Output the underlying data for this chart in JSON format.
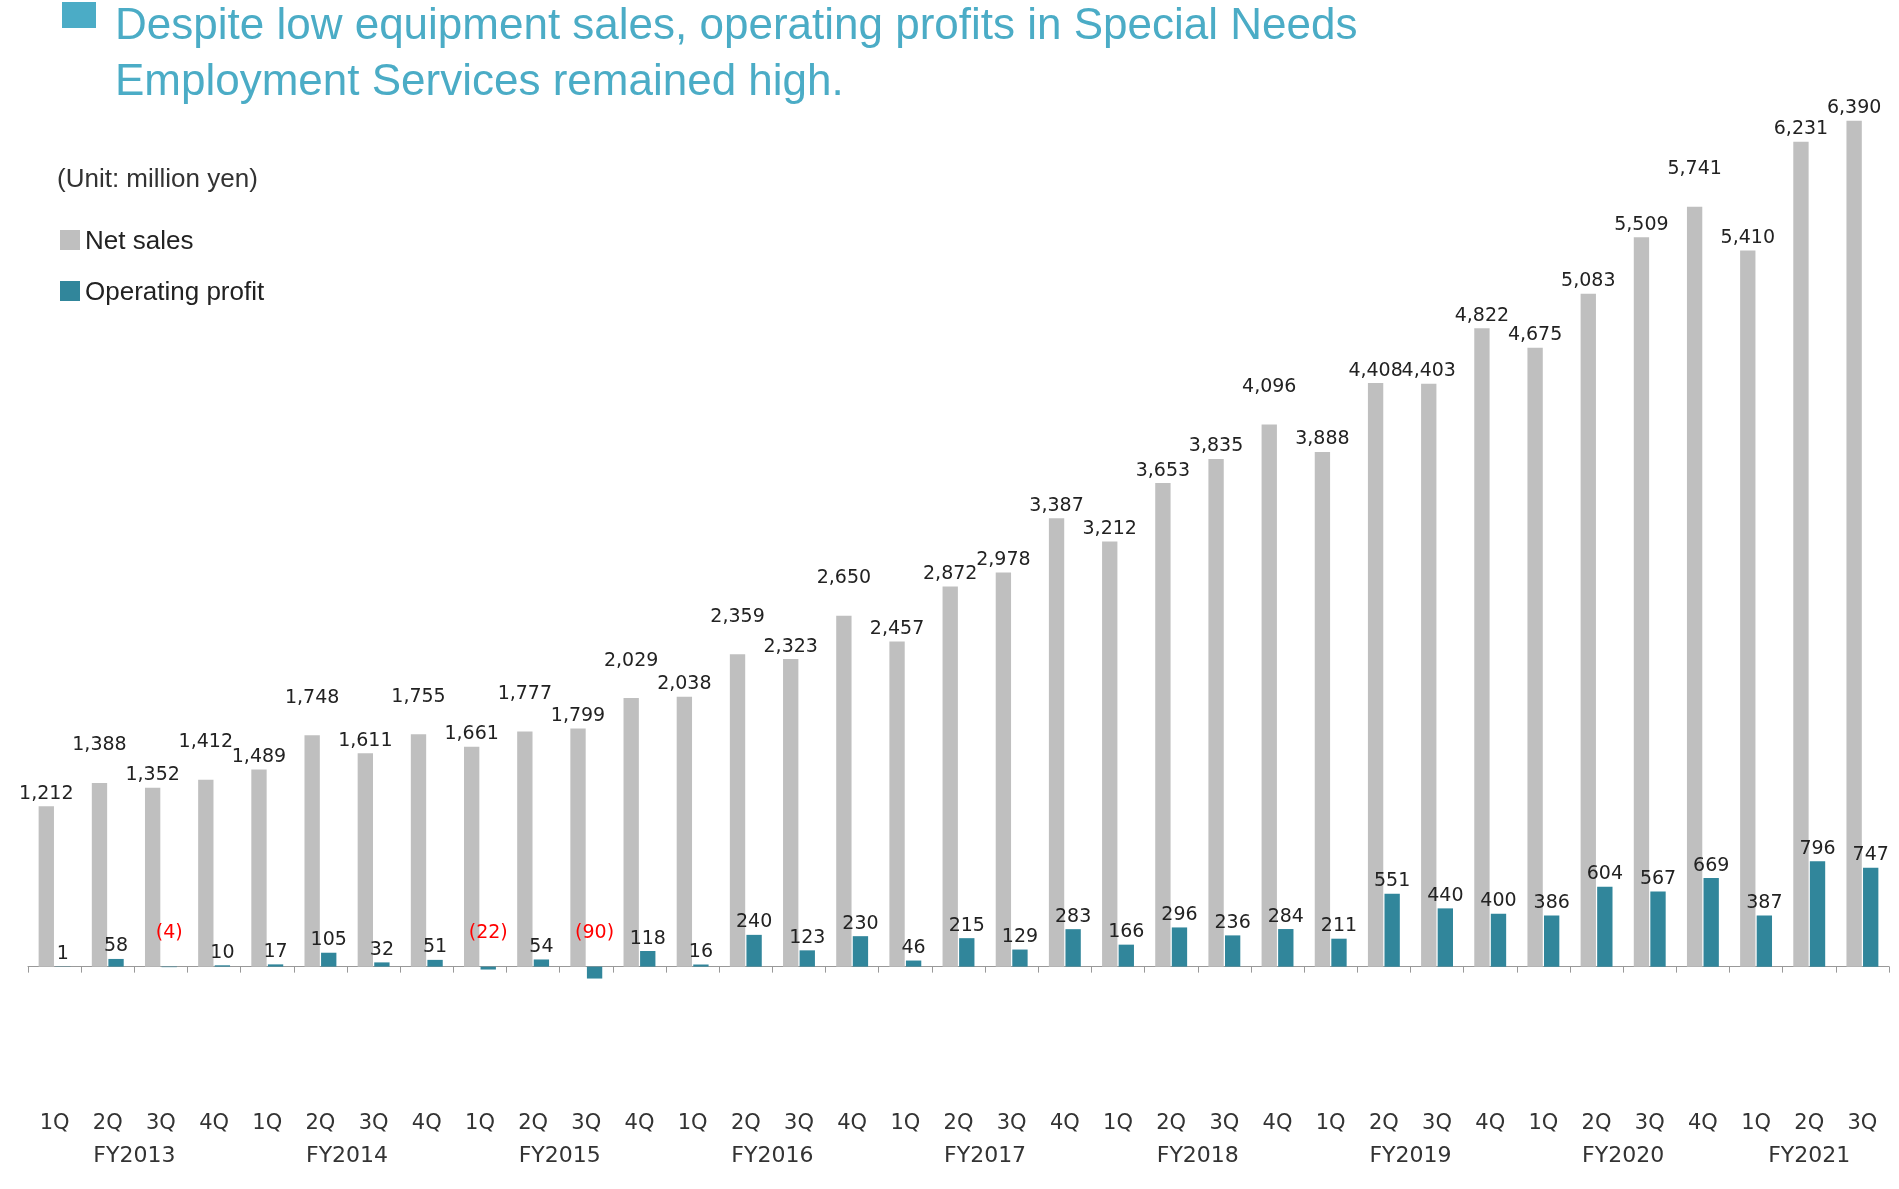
{
  "chart_data": {
    "type": "bar",
    "title": "Despite low equipment sales, operating profits in Special Needs Employment Services remained high.",
    "subtitle": "(Unit: million yen)",
    "annotations": [
      "FY2013",
      "FY2014",
      "FY2015",
      "FY2016",
      "FY2017",
      "FY2018",
      "FY2019",
      "FY2020",
      "FY2021"
    ],
    "categories": [
      "1Q",
      "2Q",
      "3Q",
      "4Q",
      "1Q",
      "2Q",
      "3Q",
      "4Q",
      "1Q",
      "2Q",
      "3Q",
      "4Q",
      "1Q",
      "2Q",
      "3Q",
      "4Q",
      "1Q",
      "2Q",
      "3Q",
      "4Q",
      "1Q",
      "2Q",
      "3Q",
      "4Q",
      "1Q",
      "2Q",
      "3Q",
      "4Q",
      "1Q",
      "2Q",
      "3Q",
      "4Q",
      "1Q",
      "2Q",
      "3Q"
    ],
    "series": [
      {
        "name": "Net sales",
        "color": "#bfbfbf",
        "values": [
          1212,
          1388,
          1352,
          1412,
          1489,
          1748,
          1611,
          1755,
          1661,
          1777,
          1799,
          2029,
          2038,
          2359,
          2323,
          2650,
          2457,
          2872,
          2978,
          3387,
          3212,
          3653,
          3835,
          4096,
          3888,
          4408,
          4403,
          4822,
          4675,
          5083,
          5509,
          5741,
          5410,
          6231,
          6390
        ],
        "value_labels": [
          "1,212",
          "1,388",
          "1,352",
          "1,412",
          "1,489",
          "1,748",
          "1,611",
          "1,755",
          "1,661",
          "1,777",
          "1,799",
          "2,029",
          "2,038",
          "2,359",
          "2,323",
          "2,650",
          "2,457",
          "2,872",
          "2,978",
          "3,387",
          "3,212",
          "3,653",
          "3,835",
          "4,096",
          "3,888",
          "4,408",
          "4,403",
          "4,822",
          "4,675",
          "5,083",
          "5,509",
          "5,741",
          "5,410",
          "6,231",
          "6,390"
        ]
      },
      {
        "name": "Operating profit",
        "color": "#31869b",
        "values": [
          1,
          58,
          -4,
          10,
          17,
          105,
          32,
          51,
          -22,
          54,
          -90,
          118,
          16,
          240,
          123,
          230,
          46,
          215,
          129,
          283,
          166,
          296,
          236,
          284,
          211,
          551,
          440,
          400,
          386,
          604,
          567,
          669,
          387,
          796,
          747
        ],
        "value_labels": [
          "1",
          "58",
          "(4)",
          "10",
          "17",
          "105",
          "32",
          "51",
          "(22)",
          "54",
          "(90)",
          "118",
          "16",
          "240",
          "123",
          "230",
          "46",
          "215",
          "129",
          "283",
          "166",
          "296",
          "236",
          "284",
          "211",
          "551",
          "440",
          "400",
          "386",
          "604",
          "567",
          "669",
          "387",
          "796",
          "747"
        ]
      }
    ],
    "legend": "top left",
    "tick_labels": "x"
  }
}
